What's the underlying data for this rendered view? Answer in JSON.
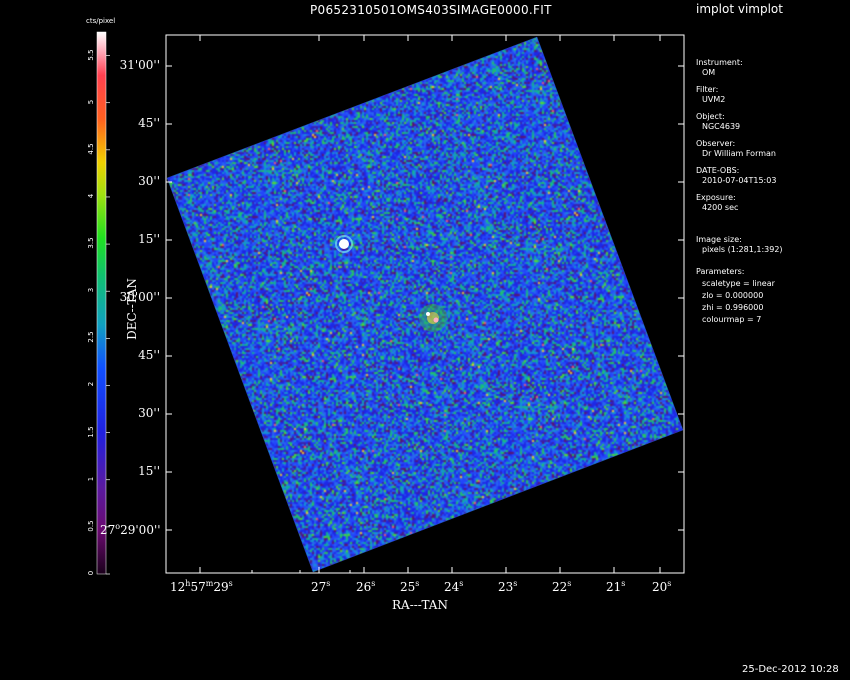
{
  "header": {
    "title": "P0652310501OMS403SIMAGE0000.FIT",
    "program": "implot vimplot",
    "timestamp": "25-Dec-2012 10:28"
  },
  "colorbar": {
    "unit_label": "cts/pixel",
    "ticks": [
      {
        "label": "0",
        "value": 0
      },
      {
        "label": "0.5",
        "value": 0.5
      },
      {
        "label": "1",
        "value": 1
      },
      {
        "label": "1.5",
        "value": 1.5
      },
      {
        "label": "2",
        "value": 2
      },
      {
        "label": "2.5",
        "value": 2.5
      },
      {
        "label": "3",
        "value": 3
      },
      {
        "label": "3.5",
        "value": 3.5
      },
      {
        "label": "4",
        "value": 4
      },
      {
        "label": "4.5",
        "value": 4.5
      },
      {
        "label": "5",
        "value": 5
      },
      {
        "label": "5.5",
        "value": 5.5
      }
    ],
    "range": [
      0,
      5.75
    ],
    "colormap": "rainbow"
  },
  "info_panel": [
    {
      "key": "Instrument:",
      "value": "OM"
    },
    {
      "key": "Filter:",
      "value": "UVM2"
    },
    {
      "key": "Object:",
      "value": "NGC4639"
    },
    {
      "key": "Observer:",
      "value": "Dr William Forman"
    },
    {
      "key": "DATE-OBS:",
      "value": "2010-07-04T15:03"
    },
    {
      "key": "Exposure:",
      "value": "4200 sec"
    },
    {
      "key": "Image size:",
      "value": "pixels (1:281,1:392)"
    }
  ],
  "parameters": {
    "heading": "Parameters:",
    "items": [
      "scaletype = linear",
      "zlo = 0.000000",
      "zhi = 0.996000",
      "colourmap =   7"
    ]
  },
  "chart_data": {
    "type": "heatmap",
    "title": "P0652310501OMS403SIMAGE0000.FIT",
    "xlabel": "RA---TAN",
    "ylabel": "DEC--TAN",
    "x_ticks": [
      {
        "h": "12",
        "m": "57",
        "s": "29"
      },
      {
        "s": "27"
      },
      {
        "s": "26"
      },
      {
        "s": "25"
      },
      {
        "s": "24"
      },
      {
        "s": "23"
      },
      {
        "s": "22"
      },
      {
        "s": "21"
      },
      {
        "s": "20"
      }
    ],
    "y_ticks": [
      {
        "label": "27°29'00\"",
        "deg": "27",
        "rest": "29'00''"
      },
      {
        "label": "15''"
      },
      {
        "label": "30''"
      },
      {
        "label": "45''"
      },
      {
        "label": "30'00''"
      },
      {
        "label": "15''"
      },
      {
        "label": "30''"
      },
      {
        "label": "45''"
      },
      {
        "label": "31'00''"
      }
    ],
    "sources": [
      {
        "name": "bright-point-source",
        "intensity": 5.5
      },
      {
        "name": "galaxy-nucleus",
        "intensity": 4.5
      }
    ],
    "background_level": [
      1.0,
      3.0
    ]
  }
}
